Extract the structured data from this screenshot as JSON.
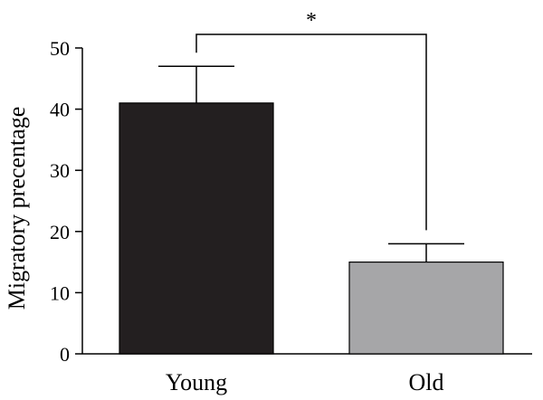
{
  "chart_data": {
    "type": "bar",
    "ylabel": "Migratory precentage",
    "xlabel": "",
    "title": "",
    "categories": [
      "Young",
      "Old"
    ],
    "values": [
      41,
      15
    ],
    "errors": [
      6,
      3
    ],
    "bar_colors": [
      "#231f20",
      "#a6a6a8"
    ],
    "ylim": [
      0,
      50
    ],
    "yticks": [
      0,
      10,
      20,
      30,
      40,
      50
    ],
    "grid": false,
    "significance": {
      "between": [
        "Young",
        "Old"
      ],
      "label": "*"
    }
  }
}
